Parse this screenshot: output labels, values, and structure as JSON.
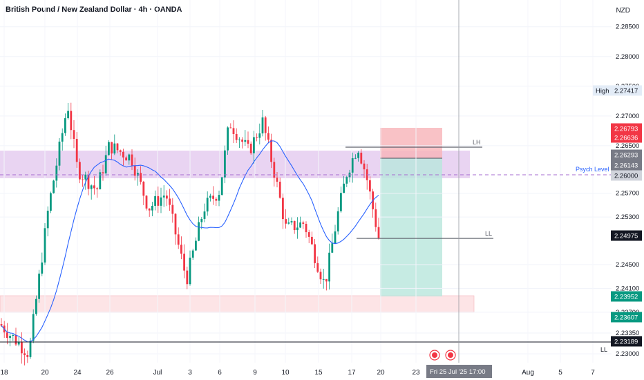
{
  "header": {
    "title": "British Pound / New Zealand Dollar · 4h · OANDA",
    "currency": "NZD"
  },
  "chart_data": {
    "type": "candlestick",
    "ylim": [
      2.2285,
      2.2895
    ],
    "y_ticks": [
      2.285,
      2.28,
      2.275,
      2.27,
      2.265,
      2.257,
      2.253,
      2.245,
      2.241,
      2.237,
      2.2335,
      2.23
    ],
    "x_ticks": [
      "18",
      "20",
      "24",
      "26",
      "Jul",
      "3",
      "6",
      "9",
      "10",
      "15",
      "17",
      "20",
      "23",
      "Aug",
      "5",
      "7"
    ],
    "x_cursor_label": "Fri 25 Jul '25   17:00",
    "price_badges": [
      {
        "label": "High",
        "value": "2.27417",
        "color": "#e3ecf7",
        "text_color": "#131722"
      },
      {
        "value": "2.26793",
        "color": "#f23645",
        "text_color": "#ffffff"
      },
      {
        "value": "2.26636",
        "color": "#f23645",
        "text_color": "#ffffff"
      },
      {
        "value": "2.26293",
        "color": "#787b86",
        "text_color": "#ffffff"
      },
      {
        "value": "2.26143",
        "color": "#787b86",
        "text_color": "#ffffff"
      },
      {
        "value": "2.26000",
        "color": "#d1d4dc",
        "text_color": "#131722"
      },
      {
        "value": "2.24975",
        "color": "#131722",
        "text_color": "#ffffff"
      },
      {
        "value": "2.23952",
        "color": "#089981",
        "text_color": "#ffffff"
      },
      {
        "value": "2.23607",
        "color": "#089981",
        "text_color": "#ffffff"
      },
      {
        "value": "2.23189",
        "color": "#131722",
        "text_color": "#ffffff"
      }
    ],
    "annotations": {
      "lh": "LH",
      "ll": "LL",
      "psych": "Psych Level",
      "ll_bottom": "LL"
    },
    "colors": {
      "up": "#089981",
      "down": "#f23645",
      "ma": "#2962ff",
      "zone_purple": "#e1c6ee",
      "zone_pink": "#fde4e6"
    }
  }
}
